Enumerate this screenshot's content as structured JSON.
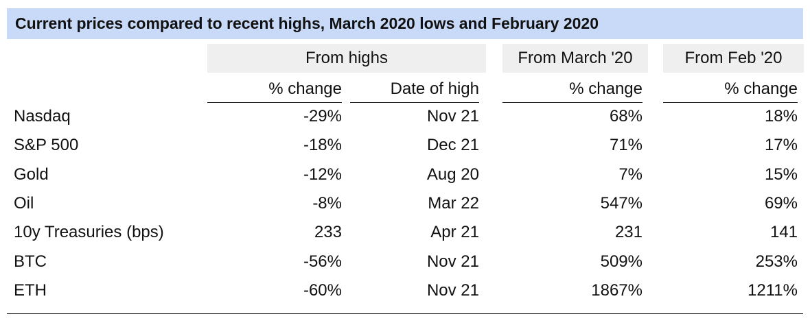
{
  "chart_data": {
    "type": "table",
    "title": "Current prices compared to recent highs, March 2020 lows and February 2020",
    "column_groups": [
      "From highs",
      "From March '20",
      "From Feb '20"
    ],
    "columns": [
      "% change",
      "Date of high",
      "% change",
      "% change"
    ],
    "rows": [
      {
        "label": "Nasdaq",
        "values": [
          "-29%",
          "Nov 21",
          "68%",
          "18%"
        ]
      },
      {
        "label": "S&P 500",
        "values": [
          "-18%",
          "Dec 21",
          "71%",
          "17%"
        ]
      },
      {
        "label": "Gold",
        "values": [
          "-12%",
          "Aug 20",
          "7%",
          "15%"
        ]
      },
      {
        "label": "Oil",
        "values": [
          "-8%",
          "Mar 22",
          "547%",
          "69%"
        ]
      },
      {
        "label": "10y Treasuries (bps)",
        "values": [
          "233",
          "Apr 21",
          "231",
          "141"
        ]
      },
      {
        "label": "BTC",
        "values": [
          "-56%",
          "Nov 21",
          "509%",
          "253%"
        ]
      },
      {
        "label": "ETH",
        "values": [
          "-60%",
          "Nov 21",
          "1867%",
          "1211%"
        ]
      }
    ],
    "colors": {
      "title_background": "#c9daf8",
      "group_header_background": "#efefef"
    }
  }
}
